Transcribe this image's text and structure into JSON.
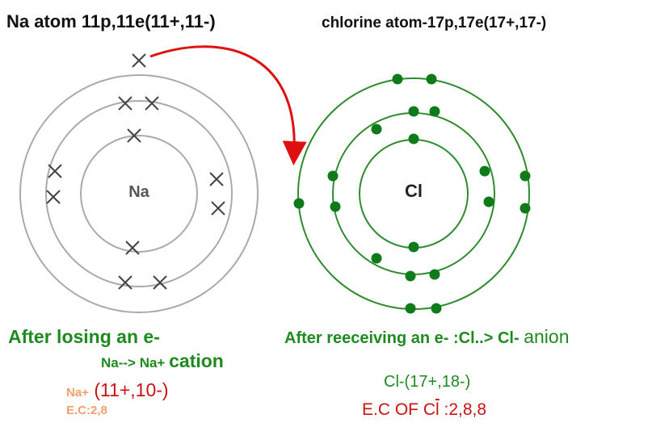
{
  "na_title": "Na atom 11p,11e(11+,11-)",
  "cl_title": "chlorine atom-17p,17e(17+,17-)",
  "na_label": "Na",
  "cl_label": "Cl",
  "na_caption": {
    "line1": "After losing an e-",
    "equation": "Na--> Na+",
    "cation": "cation",
    "ion_symbol": "Na+",
    "ion_charge": "(11+,10-)",
    "ec": "E.C:2,8"
  },
  "cl_caption": {
    "line1": "After reeceiving an  e- :Cl..> Cl-",
    "anion": "anion",
    "ion": "Cl-(17+,18-)",
    "ec_prefix": "E.C OF C",
    "ec_bar": "l",
    "ec_suffix": " :2,8,8"
  },
  "colors": {
    "na_shell": "#aaaaaa",
    "cl_shell": "#2e8b2e",
    "cl_electron": "#0f7a1a",
    "na_electron_mark": "#444444",
    "arrow": "#e01010"
  }
}
